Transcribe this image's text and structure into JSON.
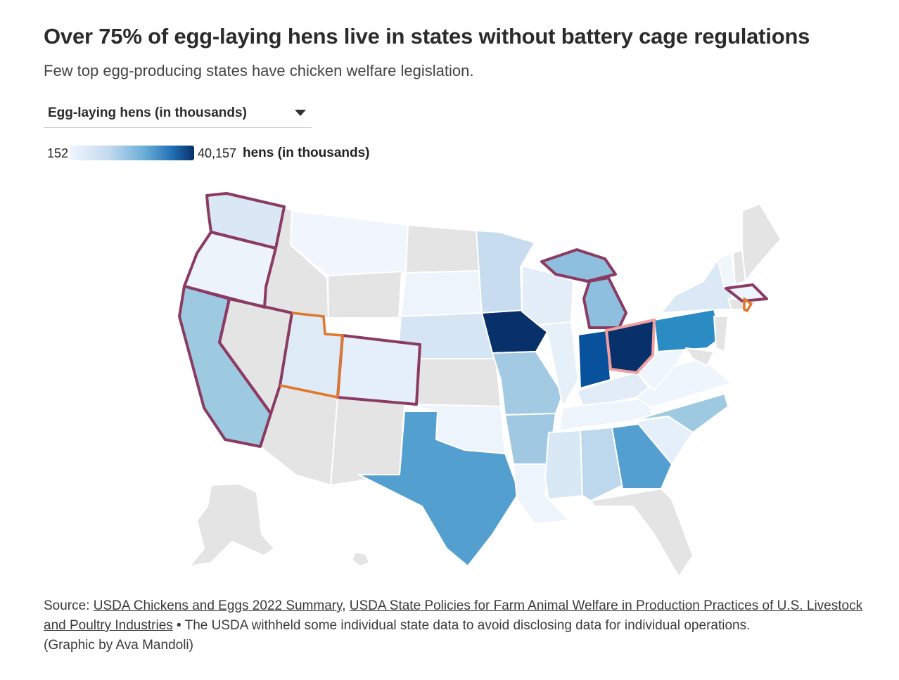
{
  "title": "Over 75% of egg-laying hens live in states without battery cage regulations",
  "subtitle": "Few top egg-producing states have chicken welfare legislation.",
  "dropdown": {
    "selected": "Egg-laying hens (in thousands)"
  },
  "legend": {
    "min": "152",
    "max": "40,157",
    "unit": "hens (in thousands)",
    "colors": [
      "#eef5fd",
      "#c6dbef",
      "#6aaed6",
      "#2171b5",
      "#08306b"
    ]
  },
  "colors": {
    "no_data": "#e4e4e4",
    "regulated_outline": "#8b3a62",
    "partial_outline": "#e0772a",
    "ohio_outline": "#f0a0a0",
    "state_border": "#ffffff"
  },
  "footer": {
    "prefix": "Source:",
    "link1": "USDA Chickens and Eggs 2022 Summary",
    "sep": ",",
    "link2": "USDA State Policies for Farm Animal Welfare in Production Practices of U.S. Livestock and Poultry Industries",
    "note": "• The USDA withheld some individual state data to avoid disclosing data for individual operations.",
    "credit": "(Graphic by Ava Mandoli)"
  }
}
